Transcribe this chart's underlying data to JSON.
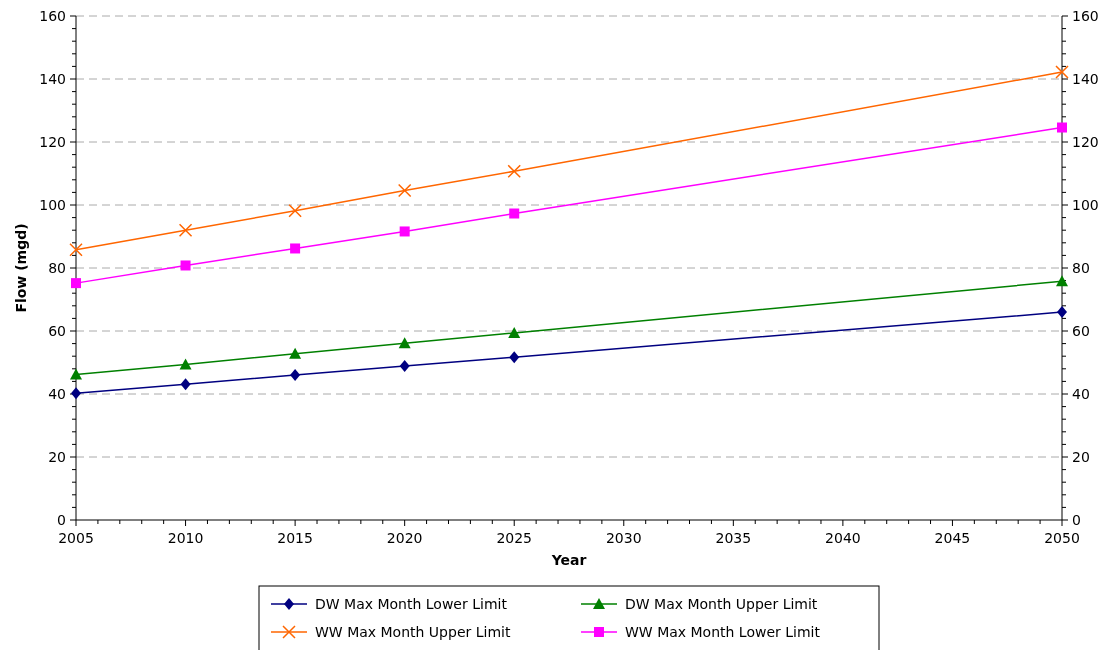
{
  "chart_data": {
    "type": "line",
    "xlabel": "Year",
    "ylabel": "Flow (mgd)",
    "x": [
      2005,
      2010,
      2015,
      2020,
      2025,
      2050
    ],
    "series": [
      {
        "name": "DW Max Month Lower Limit",
        "color": "#000080",
        "marker": "diamond",
        "values": [
          40.2,
          43.1,
          46,
          48.9,
          51.7,
          66
        ]
      },
      {
        "name": "DW Max Month Upper Limit",
        "color": "#008000",
        "marker": "triangle",
        "values": [
          46.2,
          49.4,
          52.8,
          56.1,
          59.4,
          75.8
        ]
      },
      {
        "name": "WW Max Month Upper Limit",
        "color": "#ff6600",
        "marker": "cross",
        "values": [
          85.8,
          92,
          98.2,
          104.6,
          110.7,
          142.2
        ]
      },
      {
        "name": "WW Max Month Lower Limit",
        "color": "#ff00ff",
        "marker": "square",
        "values": [
          75.2,
          80.8,
          86.2,
          91.6,
          97.3,
          124.6
        ]
      }
    ],
    "xlim": [
      2005,
      2050
    ],
    "xticks": [
      2005,
      {
        "value": 2006,
        "label": null
      },
      {
        "value": 2007,
        "label": null
      },
      {
        "value": 2008,
        "label": null
      },
      {
        "value": 2009,
        "label": null
      },
      2010,
      {
        "value": 2011,
        "label": null
      },
      {
        "value": 2012,
        "label": null
      },
      {
        "value": 2013,
        "label": null
      },
      {
        "value": 2014,
        "label": null
      },
      2015,
      {
        "value": 2016,
        "label": null
      },
      {
        "value": 2017,
        "label": null
      },
      {
        "value": 2018,
        "label": null
      },
      {
        "value": 2019,
        "label": null
      },
      2020,
      {
        "value": 2021,
        "label": null
      },
      {
        "value": 2022,
        "label": null
      },
      {
        "value": 2023,
        "label": null
      },
      {
        "value": 2024,
        "label": null
      },
      2025,
      {
        "value": 2026,
        "label": null
      },
      {
        "value": 2027,
        "label": null
      },
      {
        "value": 2028,
        "label": null
      },
      {
        "value": 2029,
        "label": null
      },
      2030,
      {
        "value": 2031,
        "label": null
      },
      {
        "value": 2032,
        "label": null
      },
      {
        "value": 2033,
        "label": null
      },
      {
        "value": 2034,
        "label": null
      },
      2035,
      {
        "value": 2036,
        "label": null
      },
      {
        "value": 2037,
        "label": null
      },
      {
        "value": 2038,
        "label": null
      },
      {
        "value": 2039,
        "label": null
      },
      2040,
      {
        "value": 2041,
        "label": null
      },
      {
        "value": 2042,
        "label": null
      },
      {
        "value": 2043,
        "label": null
      },
      {
        "value": 2044,
        "label": null
      },
      2045,
      {
        "value": 2046,
        "label": null
      },
      {
        "value": 2047,
        "label": null
      },
      {
        "value": 2048,
        "label": null
      },
      {
        "value": 2049,
        "label": null
      },
      2050
    ],
    "ylim": [
      0,
      160
    ],
    "yticks": [
      0,
      {
        "value": 4,
        "label": null
      },
      {
        "value": 8,
        "label": null
      },
      {
        "value": 12,
        "label": null
      },
      {
        "value": 16,
        "label": null
      },
      20,
      {
        "value": 24,
        "label": null
      },
      {
        "value": 28,
        "label": null
      },
      {
        "value": 32,
        "label": null
      },
      {
        "value": 36,
        "label": null
      },
      40,
      {
        "value": 44,
        "label": null
      },
      {
        "value": 48,
        "label": null
      },
      {
        "value": 52,
        "label": null
      },
      {
        "value": 56,
        "label": null
      },
      60,
      {
        "value": 64,
        "label": null
      },
      {
        "value": 68,
        "label": null
      },
      {
        "value": 72,
        "label": null
      },
      {
        "value": 76,
        "label": null
      },
      80,
      {
        "value": 84,
        "label": null
      },
      {
        "value": 88,
        "label": null
      },
      {
        "value": 92,
        "label": null
      },
      {
        "value": 96,
        "label": null
      },
      100,
      {
        "value": 104,
        "label": null
      },
      {
        "value": 108,
        "label": null
      },
      {
        "value": 112,
        "label": null
      },
      {
        "value": 116,
        "label": null
      },
      120,
      {
        "value": 124,
        "label": null
      },
      {
        "value": 128,
        "label": null
      },
      {
        "value": 132,
        "label": null
      },
      {
        "value": 136,
        "label": null
      },
      140,
      {
        "value": 144,
        "label": null
      },
      {
        "value": 148,
        "label": null
      },
      {
        "value": 152,
        "label": null
      },
      {
        "value": 156,
        "label": null
      },
      160
    ],
    "y2lim": [
      0,
      160
    ],
    "y2ticks": [
      0,
      {
        "value": 4,
        "label": null
      },
      {
        "value": 8,
        "label": null
      },
      {
        "value": 12,
        "label": null
      },
      {
        "value": 16,
        "label": null
      },
      20,
      {
        "value": 24,
        "label": null
      },
      {
        "value": 28,
        "label": null
      },
      {
        "value": 32,
        "label": null
      },
      {
        "value": 36,
        "label": null
      },
      40,
      {
        "value": 44,
        "label": null
      },
      {
        "value": 48,
        "label": null
      },
      {
        "value": 52,
        "label": null
      },
      {
        "value": 56,
        "label": null
      },
      60,
      {
        "value": 64,
        "label": null
      },
      {
        "value": 68,
        "label": null
      },
      {
        "value": 72,
        "label": null
      },
      {
        "value": 76,
        "label": null
      },
      80,
      {
        "value": 84,
        "label": null
      },
      {
        "value": 88,
        "label": null
      },
      {
        "value": 92,
        "label": null
      },
      {
        "value": 96,
        "label": null
      },
      100,
      {
        "value": 104,
        "label": null
      },
      {
        "value": 108,
        "label": null
      },
      {
        "value": 112,
        "label": null
      },
      {
        "value": 116,
        "label": null
      },
      120,
      {
        "value": 124,
        "label": null
      },
      {
        "value": 128,
        "label": null
      },
      {
        "value": 132,
        "label": null
      },
      {
        "value": 136,
        "label": null
      },
      140,
      {
        "value": 144,
        "label": null
      },
      {
        "value": 148,
        "label": null
      },
      {
        "value": 152,
        "label": null
      },
      {
        "value": 156,
        "label": null
      },
      160
    ],
    "grid": "y",
    "legend": "bottom",
    "line_style": "solid"
  }
}
